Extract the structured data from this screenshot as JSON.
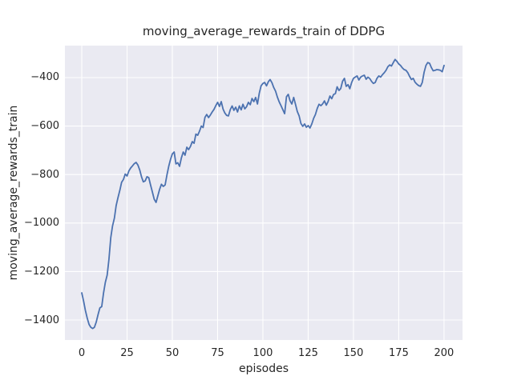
{
  "figure": {
    "title": "moving_average_rewards_train of DDPG",
    "xlabel": "episodes",
    "ylabel": "moving_average_rewards_train"
  },
  "colors": {
    "figure_bg": "#ffffff",
    "axes_bg": "#eaeaf2",
    "grid": "#ffffff",
    "line": "#4c72b0",
    "text": "#262626"
  },
  "chart_data": {
    "type": "line",
    "title": "moving_average_rewards_train of DDPG",
    "xlabel": "episodes",
    "ylabel": "moving_average_rewards_train",
    "grid": true,
    "legend": "none",
    "xlim": [
      -9.3,
      210.2
    ],
    "ylim": [
      -1482.5,
      -268
    ],
    "x_tick_values": [
      0,
      25,
      50,
      75,
      100,
      125,
      150,
      175,
      200
    ],
    "x_tick_labels": [
      "0",
      "25",
      "50",
      "75",
      "100",
      "125",
      "150",
      "175",
      "200"
    ],
    "y_tick_values": [
      -400,
      -600,
      -800,
      -1000,
      -1200,
      -1400
    ],
    "y_tick_labels": [
      "−400",
      "−600",
      "−800",
      "−1000",
      "−1200",
      "−1400"
    ],
    "series": [
      {
        "name": "moving_average_rewards_train",
        "x_start": 0,
        "x_step": 1,
        "values": [
          -1288,
          -1322,
          -1360,
          -1392,
          -1418,
          -1430,
          -1435,
          -1430,
          -1408,
          -1377,
          -1350,
          -1345,
          -1290,
          -1245,
          -1215,
          -1150,
          -1060,
          -1012,
          -980,
          -928,
          -895,
          -865,
          -832,
          -820,
          -798,
          -806,
          -785,
          -773,
          -764,
          -755,
          -750,
          -761,
          -781,
          -810,
          -830,
          -826,
          -809,
          -813,
          -844,
          -872,
          -902,
          -915,
          -888,
          -860,
          -840,
          -849,
          -843,
          -803,
          -766,
          -738,
          -715,
          -707,
          -756,
          -751,
          -766,
          -731,
          -707,
          -720,
          -687,
          -697,
          -684,
          -664,
          -671,
          -633,
          -638,
          -621,
          -600,
          -606,
          -564,
          -552,
          -565,
          -554,
          -542,
          -531,
          -516,
          -502,
          -519,
          -499,
          -530,
          -546,
          -556,
          -558,
          -532,
          -517,
          -535,
          -522,
          -542,
          -517,
          -533,
          -510,
          -529,
          -520,
          -502,
          -512,
          -486,
          -499,
          -482,
          -509,
          -464,
          -434,
          -424,
          -420,
          -434,
          -417,
          -408,
          -421,
          -441,
          -456,
          -481,
          -500,
          -516,
          -532,
          -549,
          -479,
          -469,
          -496,
          -509,
          -482,
          -511,
          -540,
          -558,
          -589,
          -601,
          -591,
          -605,
          -598,
          -608,
          -591,
          -568,
          -552,
          -527,
          -510,
          -516,
          -508,
          -496,
          -514,
          -499,
          -476,
          -487,
          -470,
          -466,
          -438,
          -453,
          -445,
          -415,
          -403,
          -436,
          -429,
          -446,
          -420,
          -403,
          -398,
          -393,
          -410,
          -398,
          -393,
          -390,
          -407,
          -398,
          -404,
          -416,
          -424,
          -420,
          -403,
          -393,
          -398,
          -388,
          -380,
          -370,
          -355,
          -348,
          -352,
          -338,
          -325,
          -333,
          -344,
          -350,
          -360,
          -367,
          -370,
          -380,
          -395,
          -408,
          -403,
          -419,
          -427,
          -433,
          -436,
          -420,
          -378,
          -350,
          -338,
          -341,
          -358,
          -372,
          -370,
          -367,
          -368,
          -370,
          -376,
          -350
        ]
      }
    ]
  }
}
